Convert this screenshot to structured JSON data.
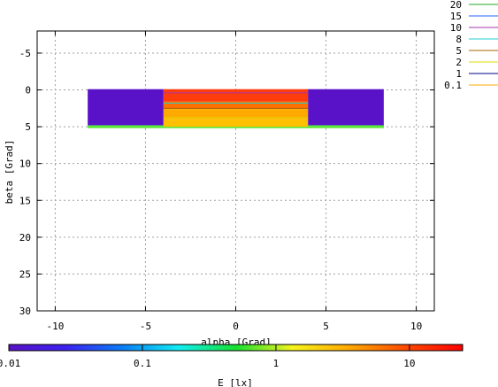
{
  "chart_data": {
    "type": "heatmap",
    "xlabel": "alpha [Grad]",
    "ylabel": "beta [Grad]",
    "colorbar_label": "E [lx]",
    "xlim": [
      -11,
      11
    ],
    "ylim": [
      30,
      -8
    ],
    "x_ticks": [
      -10,
      -5,
      0,
      5,
      10
    ],
    "x_tick_labels": [
      "-10",
      "-5",
      "0",
      "5",
      "10"
    ],
    "y_ticks": [
      -5,
      0,
      5,
      10,
      15,
      20,
      25,
      30
    ],
    "y_tick_labels": [
      "-5",
      "0",
      "5",
      "10",
      "15",
      "20",
      "25",
      "30"
    ],
    "grid": true,
    "colorbar_scale": "log",
    "colorbar_range": [
      0.01,
      25
    ],
    "colorbar_ticks": [
      0.01,
      0.1,
      1,
      10
    ],
    "colorbar_tick_labels": [
      "0.01",
      "0.1",
      "1",
      "10"
    ],
    "colorbar_colors": [
      "#5a12c8",
      "#3c20f0",
      "#0a7cf5",
      "#10eef2",
      "#16e030",
      "#f6f41c",
      "#ffa800",
      "#ff4a00",
      "#ff0000"
    ],
    "regions": [
      {
        "x": [
          -8.2,
          -4.0
        ],
        "y": [
          -0.1,
          5.0
        ],
        "value": 0.01,
        "color": "#5a12c8"
      },
      {
        "x": [
          4.0,
          8.2
        ],
        "y": [
          -0.1,
          5.0
        ],
        "value": 0.01,
        "color": "#5a12c8"
      },
      {
        "x": [
          -8.2,
          8.2
        ],
        "y": [
          4.8,
          5.2
        ],
        "value": 1.5,
        "color": "#5ce93c"
      },
      {
        "x": [
          -4.0,
          4.0
        ],
        "y": [
          -0.1,
          1.6
        ],
        "value": 15,
        "color": "#ff3c0c"
      },
      {
        "x": [
          -4.0,
          4.0
        ],
        "y": [
          1.6,
          2.6
        ],
        "value": 8,
        "color": "#ff7000"
      },
      {
        "x": [
          -4.0,
          4.0
        ],
        "y": [
          2.6,
          4.0
        ],
        "value": 4,
        "color": "#ffaa00"
      },
      {
        "x": [
          -4.0,
          4.0
        ],
        "y": [
          4.0,
          5.0
        ],
        "value": 2.5,
        "color": "#ffc000"
      }
    ],
    "contour_levels": [
      "20",
      "15",
      "10",
      "8",
      "5",
      "2",
      "1",
      "0.1"
    ],
    "contour_colors": [
      "#22aa22",
      "#2266ff",
      "#aa33aa",
      "#22cccc",
      "#aa6600",
      "#dddd00",
      "#000088",
      "#ffaa00"
    ],
    "contour_lines_beta": [
      {
        "level": "10",
        "beta": 0.4
      },
      {
        "level": "8",
        "beta": 1.8
      },
      {
        "level": "5",
        "beta": 2.5
      },
      {
        "level": "2",
        "beta": 3.8
      }
    ]
  }
}
